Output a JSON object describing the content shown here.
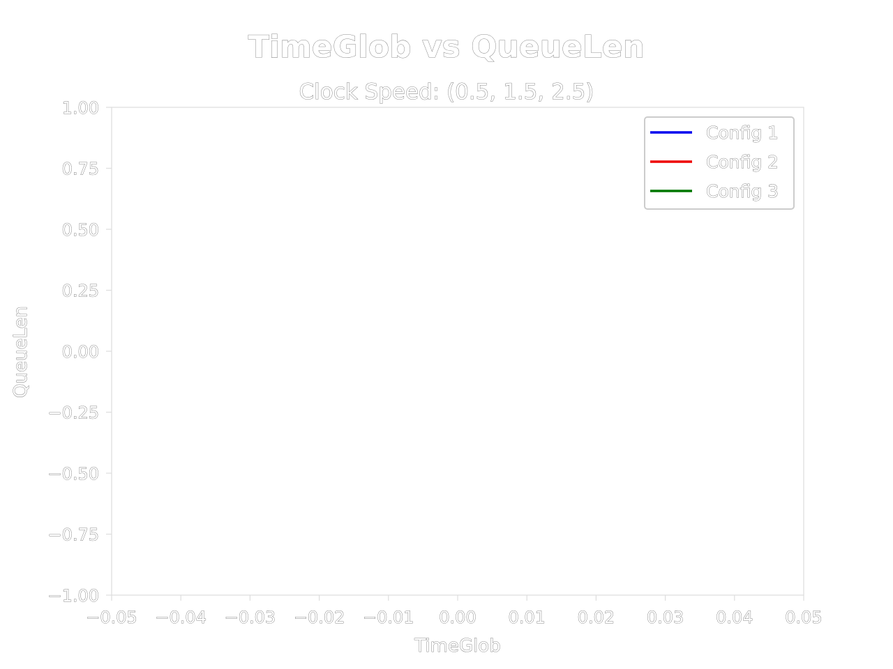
{
  "chart_data": {
    "type": "line",
    "title": "TimeGlob vs QueueLen",
    "subtitle": "Clock Speed: (0.5, 1.5, 2.5)",
    "xlabel": "TimeGlob",
    "ylabel": "QueueLen",
    "xlim": [
      -0.05,
      0.05
    ],
    "ylim": [
      -1.0,
      1.0
    ],
    "xticks": [
      -0.05,
      -0.04,
      -0.03,
      -0.02,
      -0.01,
      0.0,
      0.01,
      0.02,
      0.03,
      0.04,
      0.05
    ],
    "xtick_labels": [
      "−0.05",
      "−0.04",
      "−0.03",
      "−0.02",
      "−0.01",
      "0.00",
      "0.01",
      "0.02",
      "0.03",
      "0.04",
      "0.05"
    ],
    "yticks": [
      1.0,
      0.75,
      0.5,
      0.25,
      0.0,
      -0.25,
      -0.5,
      -0.75,
      -1.0
    ],
    "ytick_labels": [
      "1.00",
      "0.75",
      "0.50",
      "0.25",
      "0.00",
      "−0.25",
      "−0.50",
      "−0.75",
      "−1.00"
    ],
    "grid": false,
    "legend_position": "top-right",
    "series": [
      {
        "name": "Config 1",
        "color": "#0000ee",
        "x": [],
        "y": []
      },
      {
        "name": "Config 2",
        "color": "#ee0000",
        "x": [],
        "y": []
      },
      {
        "name": "Config 3",
        "color": "#007700",
        "x": [],
        "y": []
      }
    ]
  }
}
